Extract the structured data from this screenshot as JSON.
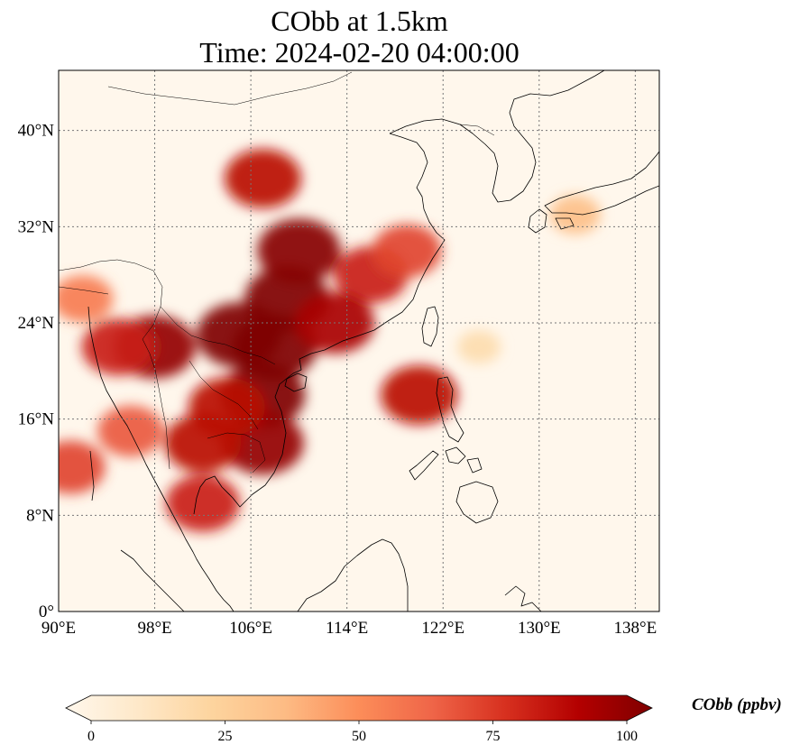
{
  "title": {
    "line1": "CObb at 1.5km",
    "line2": "Time: 2024-02-20 04:00:00"
  },
  "map": {
    "extent_lon": [
      90,
      140
    ],
    "extent_lat": [
      0,
      45
    ],
    "projection": "PlateCarree",
    "gridlines": "dotted",
    "lon_ticks": [
      "90°E",
      "98°E",
      "106°E",
      "114°E",
      "122°E",
      "130°E",
      "138°E"
    ],
    "lon_tick_values": [
      90,
      98,
      106,
      114,
      122,
      130,
      138
    ],
    "lat_ticks": [
      "0°",
      "8°N",
      "16°N",
      "24°N",
      "32°N",
      "40°N"
    ],
    "lat_tick_values": [
      0,
      8,
      16,
      24,
      32,
      40
    ]
  },
  "colorbar": {
    "label": "CObb (ppbv)",
    "colormap": "OrRd",
    "min": 0,
    "max": 100,
    "extend": "both",
    "tick_labels": [
      "0",
      "25",
      "50",
      "75",
      "100"
    ],
    "tick_values": [
      0,
      25,
      50,
      75,
      100
    ],
    "colors": [
      "#fff7ec",
      "#fee8c8",
      "#fdd49e",
      "#fdbb84",
      "#fc8d59",
      "#ef6548",
      "#d7301f",
      "#b30000",
      "#7f0000"
    ]
  },
  "plumes": [
    {
      "lon": 109,
      "lat": 26,
      "value": 100
    },
    {
      "lon": 108,
      "lat": 22,
      "value": 100
    },
    {
      "lon": 105,
      "lat": 23,
      "value": 100
    },
    {
      "lon": 110,
      "lat": 30,
      "value": 98
    },
    {
      "lon": 107,
      "lat": 36,
      "value": 85
    },
    {
      "lon": 98,
      "lat": 22,
      "value": 95
    },
    {
      "lon": 95,
      "lat": 22,
      "value": 80
    },
    {
      "lon": 107,
      "lat": 18,
      "value": 100
    },
    {
      "lon": 107,
      "lat": 14,
      "value": 95
    },
    {
      "lon": 102,
      "lat": 14,
      "value": 85
    },
    {
      "lon": 102,
      "lat": 9,
      "value": 80
    },
    {
      "lon": 104,
      "lat": 17,
      "value": 85
    },
    {
      "lon": 116,
      "lat": 28,
      "value": 80
    },
    {
      "lon": 119,
      "lat": 30,
      "value": 70
    },
    {
      "lon": 113,
      "lat": 24,
      "value": 90
    },
    {
      "lon": 120,
      "lat": 18,
      "value": 85
    },
    {
      "lon": 92,
      "lat": 26,
      "value": 55
    },
    {
      "lon": 91,
      "lat": 12,
      "value": 70
    },
    {
      "lon": 96,
      "lat": 15,
      "value": 65
    },
    {
      "lon": 133,
      "lat": 33,
      "value": 35
    },
    {
      "lon": 125,
      "lat": 22,
      "value": 20
    }
  ]
}
